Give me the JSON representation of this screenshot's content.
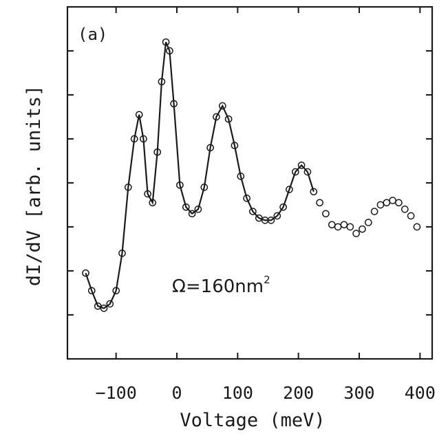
{
  "chart_data": {
    "type": "scatter",
    "panel_label": "(a)",
    "xlabel": "Voltage (meV)",
    "ylabel": "dI/dV [arb. units]",
    "annotation": {
      "prefix": "Ω=160nm",
      "superscript": "2"
    },
    "xlim": [
      -180,
      420
    ],
    "ylim": [
      0,
      8
    ],
    "x_ticks": [
      -100,
      0,
      100,
      200,
      300,
      400
    ],
    "x_tick_labels": [
      "−100",
      "0",
      "100",
      "200",
      "300",
      "400"
    ],
    "y_ticks": [
      1,
      2,
      3,
      4,
      5,
      6,
      7
    ],
    "y_tick_labels_shown": false,
    "series": [
      {
        "style": "open-circles",
        "x": [
          -150,
          -140,
          -130,
          -120,
          -110,
          -100,
          -90,
          -80,
          -70,
          -62,
          -55,
          -48,
          -40,
          -32,
          -25,
          -18,
          -12,
          -5,
          5,
          15,
          25,
          35,
          45,
          55,
          65,
          75,
          85,
          95,
          105,
          115,
          125,
          135,
          145,
          155,
          165,
          175,
          185,
          195,
          205,
          215,
          225,
          235,
          245,
          255,
          265,
          275,
          285,
          295,
          305,
          315,
          325,
          335,
          345,
          355,
          365,
          375,
          385,
          395
        ],
        "y": [
          1.95,
          1.55,
          1.2,
          1.15,
          1.25,
          1.55,
          2.4,
          3.9,
          5.0,
          5.55,
          5.0,
          3.75,
          3.55,
          4.7,
          6.3,
          7.2,
          7.0,
          5.8,
          3.95,
          3.45,
          3.3,
          3.4,
          3.9,
          4.8,
          5.5,
          5.75,
          5.45,
          4.85,
          4.15,
          3.65,
          3.35,
          3.2,
          3.15,
          3.15,
          3.25,
          3.45,
          3.85,
          4.25,
          4.4,
          4.25,
          3.8,
          3.55,
          3.3,
          3.05,
          3.0,
          3.05,
          3.0,
          2.85,
          2.95,
          3.1,
          3.35,
          3.5,
          3.55,
          3.6,
          3.55,
          3.4,
          3.25,
          3.0
        ]
      },
      {
        "style": "line",
        "x": [
          -150,
          -140,
          -130,
          -120,
          -110,
          -100,
          -90,
          -80,
          -70,
          -62,
          -55,
          -48,
          -40,
          -32,
          -25,
          -18,
          -12,
          -5,
          5,
          15,
          25,
          35,
          45,
          55,
          65,
          75,
          85,
          95,
          105,
          115,
          125,
          135,
          145,
          155,
          165,
          175,
          185,
          195,
          205,
          215,
          225
        ],
        "y": [
          1.95,
          1.55,
          1.2,
          1.15,
          1.25,
          1.55,
          2.4,
          3.9,
          5.0,
          5.55,
          5.0,
          3.75,
          3.55,
          4.7,
          6.3,
          7.2,
          7.0,
          5.8,
          3.95,
          3.45,
          3.3,
          3.4,
          3.9,
          4.8,
          5.5,
          5.75,
          5.45,
          4.85,
          4.15,
          3.65,
          3.35,
          3.2,
          3.15,
          3.15,
          3.25,
          3.45,
          3.85,
          4.25,
          4.4,
          4.25,
          3.8
        ]
      }
    ]
  }
}
